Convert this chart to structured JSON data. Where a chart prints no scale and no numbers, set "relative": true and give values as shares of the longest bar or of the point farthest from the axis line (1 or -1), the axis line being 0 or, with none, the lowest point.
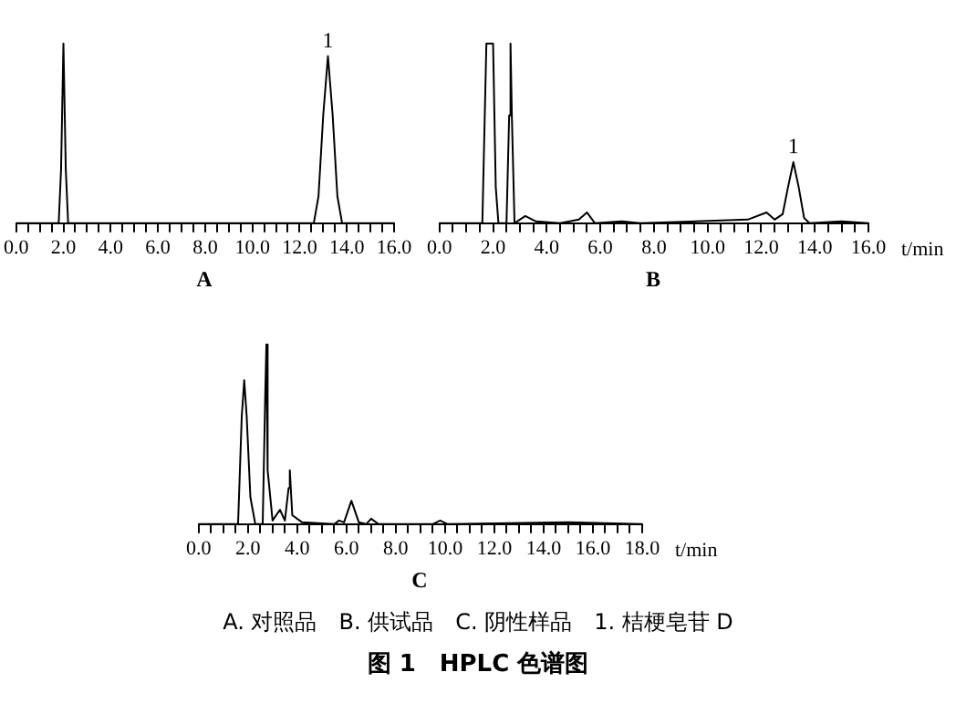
{
  "chart_data": [
    {
      "type": "line",
      "title": "A",
      "relative": true,
      "xlim": [
        0,
        16
      ],
      "xticks": [
        {
          "value": 0,
          "label": "0.0"
        },
        {
          "value": 0.5,
          "label": null
        },
        {
          "value": 1,
          "label": null
        },
        {
          "value": 1.5,
          "label": null
        },
        {
          "value": 2,
          "label": "2.0"
        },
        {
          "value": 2.5,
          "label": null
        },
        {
          "value": 3,
          "label": null
        },
        {
          "value": 3.5,
          "label": null
        },
        {
          "value": 4,
          "label": "4.0"
        },
        {
          "value": 4.5,
          "label": null
        },
        {
          "value": 5,
          "label": null
        },
        {
          "value": 5.5,
          "label": null
        },
        {
          "value": 6,
          "label": "6.0"
        },
        {
          "value": 6.5,
          "label": null
        },
        {
          "value": 7,
          "label": null
        },
        {
          "value": 7.5,
          "label": null
        },
        {
          "value": 8,
          "label": "8.0"
        },
        {
          "value": 8.5,
          "label": null
        },
        {
          "value": 9,
          "label": null
        },
        {
          "value": 9.5,
          "label": null
        },
        {
          "value": 10,
          "label": "10.0"
        },
        {
          "value": 10.5,
          "label": null
        },
        {
          "value": 11,
          "label": null
        },
        {
          "value": 11.5,
          "label": null
        },
        {
          "value": 12,
          "label": "12.0"
        },
        {
          "value": 12.5,
          "label": null
        },
        {
          "value": 13,
          "label": null
        },
        {
          "value": 13.5,
          "label": null
        },
        {
          "value": 14,
          "label": "14.0"
        },
        {
          "value": 14.5,
          "label": null
        },
        {
          "value": 15,
          "label": null
        },
        {
          "value": 15.5,
          "label": null
        },
        {
          "value": 16,
          "label": "16.0"
        }
      ],
      "tick_labels": "x",
      "grid": false,
      "legend": false,
      "marker": "none",
      "line_style": "solid",
      "series": [
        {
          "color": "#000000",
          "x": [
            0,
            1.8,
            1.9,
            2.0,
            2.1,
            2.2,
            7.5,
            12.6,
            12.8,
            13.0,
            13.2,
            13.4,
            13.6,
            13.8,
            16
          ],
          "values": [
            0,
            0,
            0.3,
            1,
            0.3,
            0,
            0,
            0,
            0.15,
            0.6,
            0.93,
            0.6,
            0.15,
            0,
            0
          ]
        }
      ],
      "annotations": [
        {
          "text": "1",
          "x": 13.2,
          "y": 0.93
        }
      ]
    },
    {
      "type": "line",
      "title": "B",
      "xlabel": "t/min",
      "relative": true,
      "xlim": [
        0,
        16
      ],
      "xticks": [
        {
          "value": 0,
          "label": "0.0"
        },
        {
          "value": 0.5,
          "label": null
        },
        {
          "value": 1,
          "label": null
        },
        {
          "value": 1.5,
          "label": null
        },
        {
          "value": 2,
          "label": "2.0"
        },
        {
          "value": 2.5,
          "label": null
        },
        {
          "value": 3,
          "label": null
        },
        {
          "value": 3.5,
          "label": null
        },
        {
          "value": 4,
          "label": "4.0"
        },
        {
          "value": 4.5,
          "label": null
        },
        {
          "value": 5,
          "label": null
        },
        {
          "value": 5.5,
          "label": null
        },
        {
          "value": 6,
          "label": "6.0"
        },
        {
          "value": 6.5,
          "label": null
        },
        {
          "value": 7,
          "label": null
        },
        {
          "value": 7.5,
          "label": null
        },
        {
          "value": 8,
          "label": "8.0"
        },
        {
          "value": 8.5,
          "label": null
        },
        {
          "value": 9,
          "label": null
        },
        {
          "value": 9.5,
          "label": null
        },
        {
          "value": 10,
          "label": "10.0"
        },
        {
          "value": 10.5,
          "label": null
        },
        {
          "value": 11,
          "label": null
        },
        {
          "value": 11.5,
          "label": null
        },
        {
          "value": 12,
          "label": "12.0"
        },
        {
          "value": 12.5,
          "label": null
        },
        {
          "value": 13,
          "label": null
        },
        {
          "value": 13.5,
          "label": null
        },
        {
          "value": 14,
          "label": "14.0"
        },
        {
          "value": 14.5,
          "label": null
        },
        {
          "value": 15,
          "label": null
        },
        {
          "value": 15.5,
          "label": null
        },
        {
          "value": 16,
          "label": "16.0"
        }
      ],
      "tick_labels": "x",
      "grid": false,
      "legend": false,
      "marker": "none",
      "line_style": "solid",
      "series": [
        {
          "color": "#000000",
          "x": [
            0,
            1.6,
            1.75,
            1.9,
            2.0,
            2.1,
            2.2,
            2.5,
            2.6,
            2.65,
            2.7,
            2.8,
            3.2,
            3.6,
            4.5,
            5.2,
            5.5,
            5.8,
            6.8,
            7.5,
            11.5,
            12.2,
            12.5,
            12.8,
            13.0,
            13.2,
            13.4,
            13.6,
            13.8,
            15.0,
            16
          ],
          "values": [
            0,
            0,
            1,
            1,
            1,
            0.2,
            0,
            0,
            0.6,
            1,
            0.6,
            0,
            0.04,
            0.01,
            0,
            0.02,
            0.06,
            0,
            0.01,
            0,
            0.02,
            0.06,
            0.02,
            0.05,
            0.2,
            0.34,
            0.2,
            0.03,
            0,
            0.01,
            0
          ]
        }
      ],
      "annotations": [
        {
          "text": "1",
          "x": 13.2,
          "y": 0.34
        }
      ]
    },
    {
      "type": "line",
      "title": "C",
      "xlabel": "t/min",
      "relative": true,
      "xlim": [
        0,
        18
      ],
      "xticks": [
        {
          "value": 0,
          "label": "0.0"
        },
        {
          "value": 0.5,
          "label": null
        },
        {
          "value": 1,
          "label": null
        },
        {
          "value": 1.5,
          "label": null
        },
        {
          "value": 2,
          "label": "2.0"
        },
        {
          "value": 2.5,
          "label": null
        },
        {
          "value": 3,
          "label": null
        },
        {
          "value": 3.5,
          "label": null
        },
        {
          "value": 4,
          "label": "4.0"
        },
        {
          "value": 4.5,
          "label": null
        },
        {
          "value": 5,
          "label": null
        },
        {
          "value": 5.5,
          "label": null
        },
        {
          "value": 6,
          "label": "6.0"
        },
        {
          "value": 6.5,
          "label": null
        },
        {
          "value": 7,
          "label": null
        },
        {
          "value": 7.5,
          "label": null
        },
        {
          "value": 8,
          "label": "8.0"
        },
        {
          "value": 8.5,
          "label": null
        },
        {
          "value": 9,
          "label": null
        },
        {
          "value": 9.5,
          "label": null
        },
        {
          "value": 10,
          "label": "10.0"
        },
        {
          "value": 10.5,
          "label": null
        },
        {
          "value": 11,
          "label": null
        },
        {
          "value": 11.5,
          "label": null
        },
        {
          "value": 12,
          "label": "12.0"
        },
        {
          "value": 12.5,
          "label": null
        },
        {
          "value": 13,
          "label": null
        },
        {
          "value": 13.5,
          "label": null
        },
        {
          "value": 14,
          "label": "14.0"
        },
        {
          "value": 14.5,
          "label": null
        },
        {
          "value": 15,
          "label": null
        },
        {
          "value": 15.5,
          "label": null
        },
        {
          "value": 16,
          "label": "16.0"
        },
        {
          "value": 16.5,
          "label": null
        },
        {
          "value": 17,
          "label": null
        },
        {
          "value": 17.5,
          "label": null
        },
        {
          "value": 18,
          "label": "18.0"
        }
      ],
      "tick_labels": "x",
      "grid": false,
      "legend": false,
      "marker": "none",
      "line_style": "solid",
      "series": [
        {
          "color": "#000000",
          "x": [
            0,
            1.6,
            1.75,
            1.85,
            1.95,
            2.1,
            2.3,
            2.6,
            2.7,
            2.75,
            2.8,
            3.0,
            3.3,
            3.5,
            3.65,
            3.7,
            3.8,
            4.2,
            5.5,
            5.7,
            5.9,
            6.2,
            6.5,
            6.8,
            7.0,
            7.3,
            9.5,
            9.8,
            10.1,
            15,
            18
          ],
          "values": [
            0,
            0,
            0.6,
            0.8,
            0.6,
            0.15,
            0,
            0,
            0.7,
            1,
            0.3,
            0.02,
            0.08,
            0.02,
            0.2,
            0.3,
            0.05,
            0.01,
            0,
            0.02,
            0.01,
            0.13,
            0.01,
            0,
            0.03,
            0,
            0,
            0.02,
            0,
            0.01,
            0
          ]
        }
      ],
      "annotations": [
        "A. 对照品　B. 供试品　C. 阴性样品　1. 桔梗皂苷 D",
        "图 1　HPLC 色谱图"
      ]
    }
  ]
}
